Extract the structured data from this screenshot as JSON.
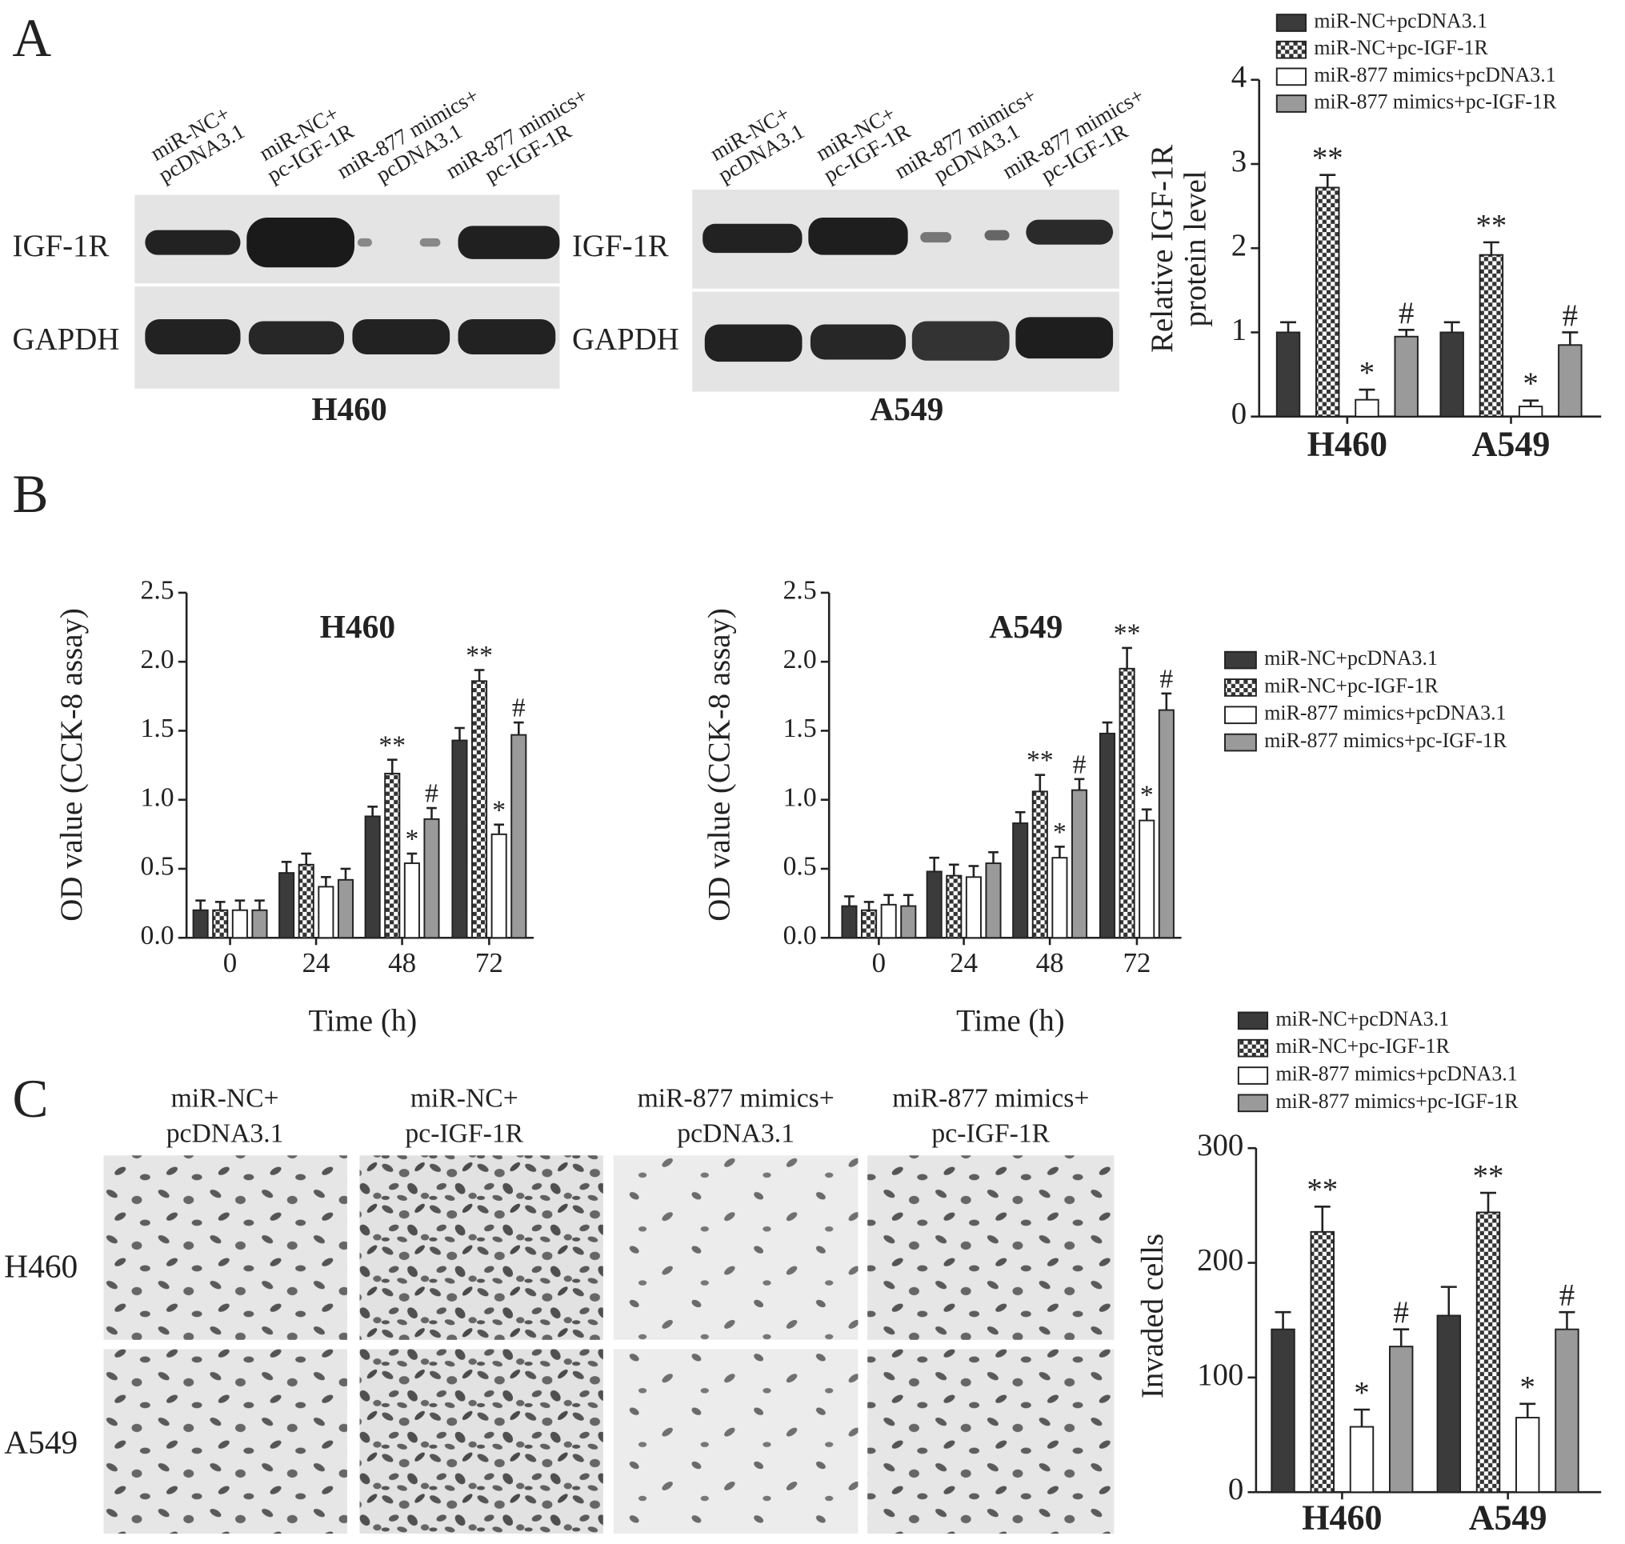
{
  "panel_labels": [
    "A",
    "B",
    "C"
  ],
  "blots": [
    {
      "cell": "H460",
      "rows": [
        "IGF-1R",
        "GAPDH"
      ],
      "lanes": [
        [
          "miR-NC+",
          "pcDNA3.1"
        ],
        [
          "miR-NC+",
          "pc-IGF-1R"
        ],
        [
          "miR-877 mimics+",
          "pcDNA3.1"
        ],
        [
          "miR-877 mimics+",
          "pc-IGF-1R"
        ]
      ]
    },
    {
      "cell": "A549",
      "rows": [
        "IGF-1R",
        "GAPDH"
      ],
      "lanes": [
        [
          "miR-NC+",
          "pcDNA3.1"
        ],
        [
          "miR-NC+",
          "pc-IGF-1R"
        ],
        [
          "miR-877 mimics+",
          "pcDNA3.1"
        ],
        [
          "miR-877 mimics+",
          "pc-IGF-1R"
        ]
      ]
    }
  ],
  "micrographs": {
    "columns": [
      [
        "miR-NC+",
        "pcDNA3.1"
      ],
      [
        "miR-NC+",
        "pc-IGF-1R"
      ],
      [
        "miR-877 mimics+",
        "pcDNA3.1"
      ],
      [
        "miR-877 mimics+",
        "pc-IGF-1R"
      ]
    ],
    "rows": [
      "H460",
      "A549"
    ]
  },
  "chart_data": [
    {
      "type": "bar",
      "y_label": [
        "Relative IGF-1R",
        "protein level"
      ],
      "categories": [
        "H460",
        "A549"
      ],
      "ylim": [
        0,
        4
      ],
      "yticks": [
        0,
        1,
        2,
        3,
        4
      ],
      "legend": "top-right",
      "series": [
        {
          "name": "miR-NC+pcDNA3.1",
          "color": "#3b3b3b",
          "values": [
            1.0,
            1.0
          ],
          "errors": [
            0.12,
            0.12
          ]
        },
        {
          "name": "miR-NC+pc-IGF-1R",
          "color": "#3b3b3b",
          "pattern": "checkerboard",
          "values": [
            2.72,
            1.92
          ],
          "errors": [
            0.15,
            0.15
          ],
          "annotations": [
            "**",
            "**"
          ]
        },
        {
          "name": "miR-877 mimics+pcDNA3.1",
          "color": "#ffffff",
          "values": [
            0.2,
            0.12
          ],
          "errors": [
            0.12,
            0.07
          ],
          "annotations": [
            "*",
            "*"
          ]
        },
        {
          "name": "miR-877 mimics+pc-IGF-1R",
          "color": "#9a9a9a",
          "values": [
            0.95,
            0.85
          ],
          "errors": [
            0.08,
            0.15
          ],
          "annotations": [
            "#",
            "#"
          ]
        }
      ]
    },
    {
      "type": "bar",
      "title": "H460",
      "x_label": "Time (h)",
      "y_label": [
        "OD value (CCK-8 assay)"
      ],
      "categories": [
        "0",
        "24",
        "48",
        "72"
      ],
      "ylim": [
        0,
        2.5
      ],
      "yticks": [
        {
          "value": 0,
          "label": "0.0"
        },
        0.5,
        {
          "value": 1,
          "label": "1.0"
        },
        1.5,
        {
          "value": 2,
          "label": "2.0"
        },
        2.5
      ],
      "legend": "right",
      "series": [
        {
          "name": "miR-NC+pcDNA3.1",
          "color": "#3b3b3b",
          "values": [
            0.2,
            0.47,
            0.88,
            1.43
          ],
          "errors": [
            0.07,
            0.08,
            0.07,
            0.09
          ]
        },
        {
          "name": "miR-NC+pc-IGF-1R",
          "color": "#3b3b3b",
          "pattern": "checkerboard",
          "values": [
            0.2,
            0.53,
            1.19,
            1.86
          ],
          "errors": [
            0.06,
            0.08,
            0.1,
            0.08
          ],
          "annotations": [
            null,
            null,
            "**",
            "**"
          ]
        },
        {
          "name": "miR-877 mimics+pcDNA3.1",
          "color": "#ffffff",
          "values": [
            0.2,
            0.37,
            0.54,
            0.75
          ],
          "errors": [
            0.07,
            0.07,
            0.07,
            0.07
          ],
          "annotations": [
            null,
            null,
            "*",
            "*"
          ]
        },
        {
          "name": "miR-877 mimics+pc-IGF-1R",
          "color": "#9a9a9a",
          "values": [
            0.2,
            0.42,
            0.86,
            1.47
          ],
          "errors": [
            0.07,
            0.08,
            0.08,
            0.09
          ],
          "annotations": [
            null,
            null,
            "#",
            "#"
          ]
        }
      ]
    },
    {
      "type": "bar",
      "title": "A549",
      "x_label": "Time (h)",
      "y_label": [
        "OD value (CCK-8 assay)"
      ],
      "categories": [
        "0",
        "24",
        "48",
        "72"
      ],
      "ylim": [
        0,
        2.5
      ],
      "yticks": [
        {
          "value": 0,
          "label": "0.0"
        },
        0.5,
        {
          "value": 1,
          "label": "1.0"
        },
        1.5,
        {
          "value": 2,
          "label": "2.0"
        },
        2.5
      ],
      "series": [
        {
          "color": "#3b3b3b",
          "values": [
            0.23,
            0.48,
            0.83,
            1.48
          ],
          "errors": [
            0.07,
            0.1,
            0.08,
            0.08
          ]
        },
        {
          "color": "#3b3b3b",
          "pattern": "checkerboard",
          "values": [
            0.2,
            0.45,
            1.06,
            1.95
          ],
          "errors": [
            0.06,
            0.08,
            0.12,
            0.15
          ],
          "annotations": [
            null,
            null,
            "**",
            "**"
          ]
        },
        {
          "color": "#ffffff",
          "values": [
            0.24,
            0.44,
            0.58,
            0.85
          ],
          "errors": [
            0.07,
            0.08,
            0.08,
            0.08
          ],
          "annotations": [
            null,
            null,
            "*",
            "*"
          ]
        },
        {
          "color": "#9a9a9a",
          "values": [
            0.23,
            0.54,
            1.07,
            1.65
          ],
          "errors": [
            0.08,
            0.08,
            0.08,
            0.12
          ],
          "annotations": [
            null,
            null,
            "#",
            "#"
          ]
        }
      ]
    },
    {
      "type": "bar",
      "y_label": [
        "Invaded cells"
      ],
      "categories": [
        "H460",
        "A549"
      ],
      "ylim": [
        0,
        300
      ],
      "yticks": [
        0,
        100,
        200,
        300
      ],
      "legend": "top-right",
      "series": [
        {
          "name": "miR-NC+pcDNA3.1",
          "color": "#3b3b3b",
          "values": [
            142,
            154
          ],
          "errors": [
            15,
            25
          ]
        },
        {
          "name": "miR-NC+pc-IGF-1R",
          "color": "#3b3b3b",
          "pattern": "checkerboard",
          "values": [
            227,
            244
          ],
          "errors": [
            22,
            17
          ],
          "annotations": [
            "**",
            "**"
          ]
        },
        {
          "name": "miR-877 mimics+pcDNA3.1",
          "color": "#ffffff",
          "values": [
            57,
            65
          ],
          "errors": [
            15,
            12
          ],
          "annotations": [
            "*",
            "*"
          ]
        },
        {
          "name": "miR-877 mimics+pc-IGF-1R",
          "color": "#9a9a9a",
          "values": [
            127,
            142
          ],
          "errors": [
            15,
            15
          ],
          "annotations": [
            "#",
            "#"
          ]
        }
      ]
    }
  ]
}
